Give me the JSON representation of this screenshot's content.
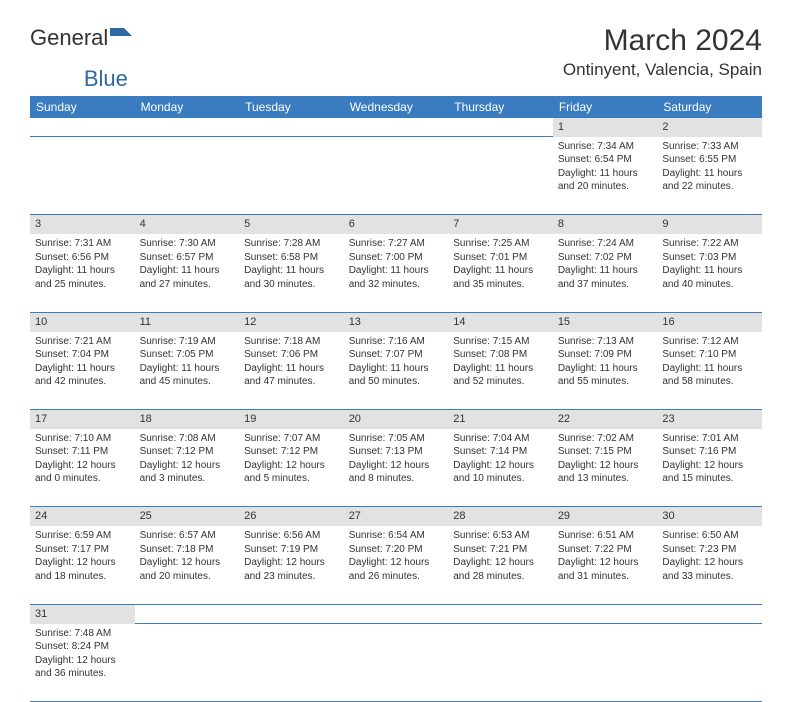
{
  "brand": {
    "part1": "General",
    "part2": "Blue"
  },
  "title": "March 2024",
  "location": "Ontinyent, Valencia, Spain",
  "colors": {
    "header_bg": "#3b7bbf",
    "header_text": "#ffffff",
    "daynum_bg": "#e2e2e2",
    "border": "#3b7bbf",
    "text": "#333333",
    "brand_blue": "#2d6aa3"
  },
  "weekdays": [
    "Sunday",
    "Monday",
    "Tuesday",
    "Wednesday",
    "Thursday",
    "Friday",
    "Saturday"
  ],
  "weeks": [
    [
      null,
      null,
      null,
      null,
      null,
      {
        "n": "1",
        "sr": "Sunrise: 7:34 AM",
        "ss": "Sunset: 6:54 PM",
        "d1": "Daylight: 11 hours",
        "d2": "and 20 minutes."
      },
      {
        "n": "2",
        "sr": "Sunrise: 7:33 AM",
        "ss": "Sunset: 6:55 PM",
        "d1": "Daylight: 11 hours",
        "d2": "and 22 minutes."
      }
    ],
    [
      {
        "n": "3",
        "sr": "Sunrise: 7:31 AM",
        "ss": "Sunset: 6:56 PM",
        "d1": "Daylight: 11 hours",
        "d2": "and 25 minutes."
      },
      {
        "n": "4",
        "sr": "Sunrise: 7:30 AM",
        "ss": "Sunset: 6:57 PM",
        "d1": "Daylight: 11 hours",
        "d2": "and 27 minutes."
      },
      {
        "n": "5",
        "sr": "Sunrise: 7:28 AM",
        "ss": "Sunset: 6:58 PM",
        "d1": "Daylight: 11 hours",
        "d2": "and 30 minutes."
      },
      {
        "n": "6",
        "sr": "Sunrise: 7:27 AM",
        "ss": "Sunset: 7:00 PM",
        "d1": "Daylight: 11 hours",
        "d2": "and 32 minutes."
      },
      {
        "n": "7",
        "sr": "Sunrise: 7:25 AM",
        "ss": "Sunset: 7:01 PM",
        "d1": "Daylight: 11 hours",
        "d2": "and 35 minutes."
      },
      {
        "n": "8",
        "sr": "Sunrise: 7:24 AM",
        "ss": "Sunset: 7:02 PM",
        "d1": "Daylight: 11 hours",
        "d2": "and 37 minutes."
      },
      {
        "n": "9",
        "sr": "Sunrise: 7:22 AM",
        "ss": "Sunset: 7:03 PM",
        "d1": "Daylight: 11 hours",
        "d2": "and 40 minutes."
      }
    ],
    [
      {
        "n": "10",
        "sr": "Sunrise: 7:21 AM",
        "ss": "Sunset: 7:04 PM",
        "d1": "Daylight: 11 hours",
        "d2": "and 42 minutes."
      },
      {
        "n": "11",
        "sr": "Sunrise: 7:19 AM",
        "ss": "Sunset: 7:05 PM",
        "d1": "Daylight: 11 hours",
        "d2": "and 45 minutes."
      },
      {
        "n": "12",
        "sr": "Sunrise: 7:18 AM",
        "ss": "Sunset: 7:06 PM",
        "d1": "Daylight: 11 hours",
        "d2": "and 47 minutes."
      },
      {
        "n": "13",
        "sr": "Sunrise: 7:16 AM",
        "ss": "Sunset: 7:07 PM",
        "d1": "Daylight: 11 hours",
        "d2": "and 50 minutes."
      },
      {
        "n": "14",
        "sr": "Sunrise: 7:15 AM",
        "ss": "Sunset: 7:08 PM",
        "d1": "Daylight: 11 hours",
        "d2": "and 52 minutes."
      },
      {
        "n": "15",
        "sr": "Sunrise: 7:13 AM",
        "ss": "Sunset: 7:09 PM",
        "d1": "Daylight: 11 hours",
        "d2": "and 55 minutes."
      },
      {
        "n": "16",
        "sr": "Sunrise: 7:12 AM",
        "ss": "Sunset: 7:10 PM",
        "d1": "Daylight: 11 hours",
        "d2": "and 58 minutes."
      }
    ],
    [
      {
        "n": "17",
        "sr": "Sunrise: 7:10 AM",
        "ss": "Sunset: 7:11 PM",
        "d1": "Daylight: 12 hours",
        "d2": "and 0 minutes."
      },
      {
        "n": "18",
        "sr": "Sunrise: 7:08 AM",
        "ss": "Sunset: 7:12 PM",
        "d1": "Daylight: 12 hours",
        "d2": "and 3 minutes."
      },
      {
        "n": "19",
        "sr": "Sunrise: 7:07 AM",
        "ss": "Sunset: 7:12 PM",
        "d1": "Daylight: 12 hours",
        "d2": "and 5 minutes."
      },
      {
        "n": "20",
        "sr": "Sunrise: 7:05 AM",
        "ss": "Sunset: 7:13 PM",
        "d1": "Daylight: 12 hours",
        "d2": "and 8 minutes."
      },
      {
        "n": "21",
        "sr": "Sunrise: 7:04 AM",
        "ss": "Sunset: 7:14 PM",
        "d1": "Daylight: 12 hours",
        "d2": "and 10 minutes."
      },
      {
        "n": "22",
        "sr": "Sunrise: 7:02 AM",
        "ss": "Sunset: 7:15 PM",
        "d1": "Daylight: 12 hours",
        "d2": "and 13 minutes."
      },
      {
        "n": "23",
        "sr": "Sunrise: 7:01 AM",
        "ss": "Sunset: 7:16 PM",
        "d1": "Daylight: 12 hours",
        "d2": "and 15 minutes."
      }
    ],
    [
      {
        "n": "24",
        "sr": "Sunrise: 6:59 AM",
        "ss": "Sunset: 7:17 PM",
        "d1": "Daylight: 12 hours",
        "d2": "and 18 minutes."
      },
      {
        "n": "25",
        "sr": "Sunrise: 6:57 AM",
        "ss": "Sunset: 7:18 PM",
        "d1": "Daylight: 12 hours",
        "d2": "and 20 minutes."
      },
      {
        "n": "26",
        "sr": "Sunrise: 6:56 AM",
        "ss": "Sunset: 7:19 PM",
        "d1": "Daylight: 12 hours",
        "d2": "and 23 minutes."
      },
      {
        "n": "27",
        "sr": "Sunrise: 6:54 AM",
        "ss": "Sunset: 7:20 PM",
        "d1": "Daylight: 12 hours",
        "d2": "and 26 minutes."
      },
      {
        "n": "28",
        "sr": "Sunrise: 6:53 AM",
        "ss": "Sunset: 7:21 PM",
        "d1": "Daylight: 12 hours",
        "d2": "and 28 minutes."
      },
      {
        "n": "29",
        "sr": "Sunrise: 6:51 AM",
        "ss": "Sunset: 7:22 PM",
        "d1": "Daylight: 12 hours",
        "d2": "and 31 minutes."
      },
      {
        "n": "30",
        "sr": "Sunrise: 6:50 AM",
        "ss": "Sunset: 7:23 PM",
        "d1": "Daylight: 12 hours",
        "d2": "and 33 minutes."
      }
    ],
    [
      {
        "n": "31",
        "sr": "Sunrise: 7:48 AM",
        "ss": "Sunset: 8:24 PM",
        "d1": "Daylight: 12 hours",
        "d2": "and 36 minutes."
      },
      null,
      null,
      null,
      null,
      null,
      null
    ]
  ]
}
